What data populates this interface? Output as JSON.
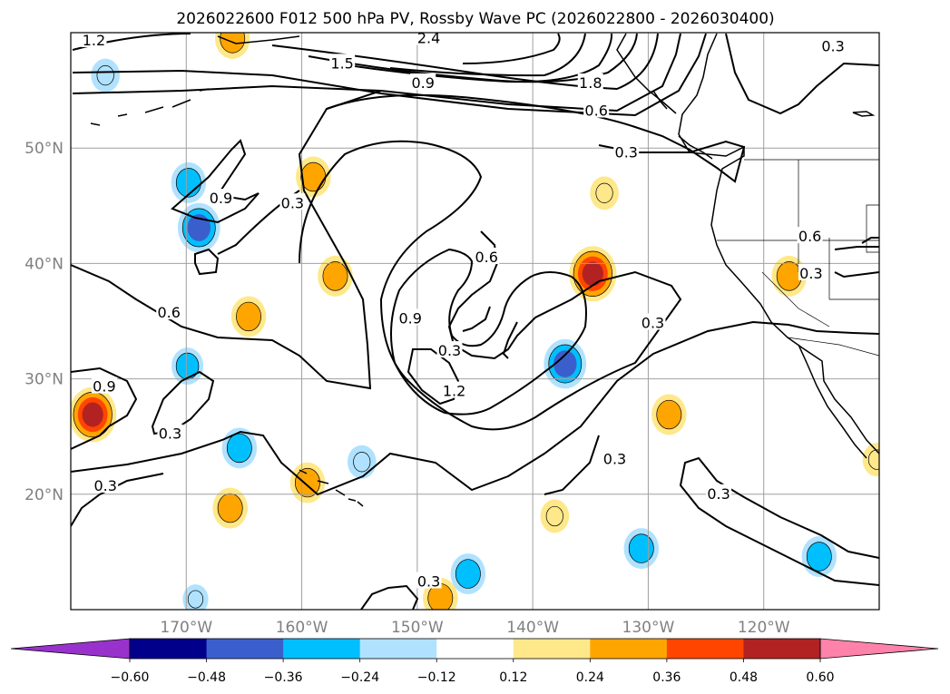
{
  "chart_data": {
    "type": "contour_map",
    "title": "2026022600 F012 500 hPa PV, Rossby Wave PC (2026022800 - 2026030400)",
    "map_extent": {
      "lon": [
        -180,
        -110
      ],
      "lat": [
        10,
        60
      ]
    },
    "lat_ticks": [
      {
        "value": 20,
        "label": "20°N"
      },
      {
        "value": 30,
        "label": "30°N"
      },
      {
        "value": 40,
        "label": "40°N"
      },
      {
        "value": 50,
        "label": "50°N"
      }
    ],
    "lon_ticks": [
      {
        "value": -170,
        "label": "170°W"
      },
      {
        "value": -160,
        "label": "160°W"
      },
      {
        "value": -150,
        "label": "150°W"
      },
      {
        "value": -140,
        "label": "140°W"
      },
      {
        "value": -130,
        "label": "130°W"
      },
      {
        "value": -120,
        "label": "120°W"
      }
    ],
    "colorbar": {
      "boundaries": [
        -0.6,
        -0.48,
        -0.36,
        -0.24,
        -0.12,
        0.12,
        0.24,
        0.36,
        0.48,
        0.6
      ],
      "tick_labels": [
        "−0.60",
        "−0.48",
        "−0.36",
        "−0.24",
        "−0.12",
        "0.12",
        "0.24",
        "0.36",
        "0.48",
        "0.60"
      ],
      "colors": [
        "#9932cc",
        "#00008b",
        "#3a5fcd",
        "#00bfff",
        "#b0e2ff",
        "#ffffff",
        "#ffe88a",
        "#ffa500",
        "#ff4500",
        "#b22222",
        "#ff82ab"
      ],
      "extend": "both"
    },
    "pv_contour_levels": [
      0.3,
      0.6,
      0.9,
      1.2,
      1.5,
      1.8,
      2.4
    ],
    "contour_labels": [
      {
        "text": "1.2",
        "lon": -178.0,
        "lat": 59.3
      },
      {
        "text": "2.4",
        "lon": -149.0,
        "lat": 59.5
      },
      {
        "text": "1.5",
        "lon": -156.5,
        "lat": 57.3
      },
      {
        "text": "0.9",
        "lon": -149.5,
        "lat": 55.6
      },
      {
        "text": "1.8",
        "lon": -135.0,
        "lat": 55.6
      },
      {
        "text": "0.6",
        "lon": -134.5,
        "lat": 53.2
      },
      {
        "text": "0.3",
        "lon": -114.0,
        "lat": 58.8
      },
      {
        "text": "0.3",
        "lon": -131.9,
        "lat": 49.6
      },
      {
        "text": "0.9",
        "lon": -167.0,
        "lat": 45.6
      },
      {
        "text": "0.3",
        "lon": -160.8,
        "lat": 45.2
      },
      {
        "text": "0.6",
        "lon": -144.0,
        "lat": 40.5
      },
      {
        "text": "0.6",
        "lon": -171.5,
        "lat": 35.7
      },
      {
        "text": "0.9",
        "lon": -150.6,
        "lat": 35.2
      },
      {
        "text": "0.3",
        "lon": -147.2,
        "lat": 32.4
      },
      {
        "text": "0.3",
        "lon": -129.6,
        "lat": 34.8
      },
      {
        "text": "0.9",
        "lon": -177.1,
        "lat": 29.3
      },
      {
        "text": "1.2",
        "lon": -146.8,
        "lat": 28.9
      },
      {
        "text": "0.3",
        "lon": -171.4,
        "lat": 25.2
      },
      {
        "text": "0.3",
        "lon": -132.9,
        "lat": 23.0
      },
      {
        "text": "0.3",
        "lon": -177.0,
        "lat": 20.7
      },
      {
        "text": "0.3",
        "lon": -123.9,
        "lat": 20.0
      },
      {
        "text": "0.6",
        "lon": -116.0,
        "lat": 42.3
      },
      {
        "text": "0.3",
        "lon": -115.9,
        "lat": 39.1
      },
      {
        "text": "0.3",
        "lon": -149.0,
        "lat": 12.4
      }
    ],
    "rossby_wave_pc_anomalies": [
      {
        "lon": -178.1,
        "lat": 26.9,
        "value": 0.5
      },
      {
        "lon": -164.6,
        "lat": 35.4,
        "value": 0.3
      },
      {
        "lon": -159.0,
        "lat": 47.5,
        "value": 0.3
      },
      {
        "lon": -157.1,
        "lat": 38.9,
        "value": 0.3
      },
      {
        "lon": -134.8,
        "lat": 39.1,
        "value": 0.5
      },
      {
        "lon": -128.2,
        "lat": 26.9,
        "value": 0.3
      },
      {
        "lon": -117.8,
        "lat": 38.9,
        "value": 0.3
      },
      {
        "lon": -159.5,
        "lat": 21.0,
        "value": 0.3
      },
      {
        "lon": -166.2,
        "lat": 18.8,
        "value": 0.3
      },
      {
        "lon": -133.8,
        "lat": 46.1,
        "value": 0.2
      },
      {
        "lon": -166.0,
        "lat": 59.5,
        "value": 0.3
      },
      {
        "lon": -148.0,
        "lat": 11.0,
        "value": 0.3
      },
      {
        "lon": -138.1,
        "lat": 18.1,
        "value": 0.2
      },
      {
        "lon": -110.2,
        "lat": 23.0,
        "value": 0.2
      },
      {
        "lon": -168.9,
        "lat": 43.1,
        "value": -0.42
      },
      {
        "lon": -137.2,
        "lat": 31.3,
        "value": -0.42
      },
      {
        "lon": -169.8,
        "lat": 47.0,
        "value": -0.3
      },
      {
        "lon": -177.0,
        "lat": 56.3,
        "value": -0.2
      },
      {
        "lon": -169.9,
        "lat": 31.1,
        "value": -0.25
      },
      {
        "lon": -165.4,
        "lat": 24.0,
        "value": -0.3
      },
      {
        "lon": -145.6,
        "lat": 13.1,
        "value": -0.3
      },
      {
        "lon": -130.6,
        "lat": 15.3,
        "value": -0.3
      },
      {
        "lon": -115.2,
        "lat": 14.6,
        "value": -0.3
      },
      {
        "lon": -154.8,
        "lat": 22.8,
        "value": -0.2
      },
      {
        "lon": -169.2,
        "lat": 10.9,
        "value": -0.15
      }
    ]
  }
}
